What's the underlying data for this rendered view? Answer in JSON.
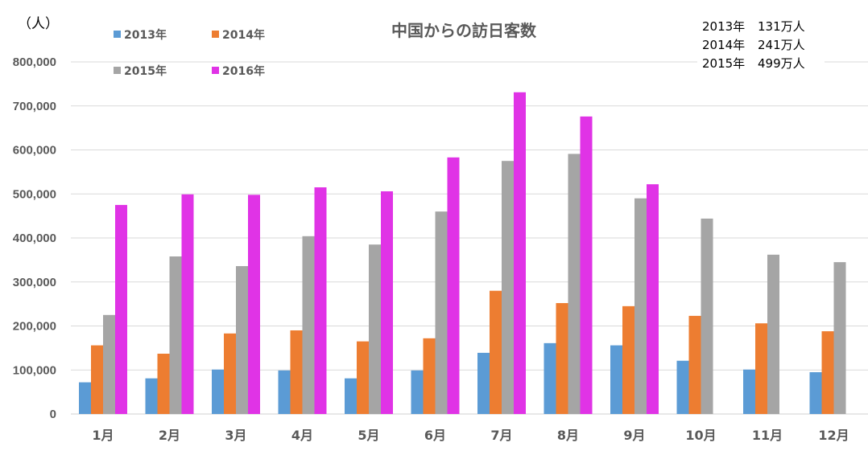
{
  "chart_data": {
    "type": "bar",
    "title": "中国からの訪日客数",
    "y_unit_label": "（人）",
    "ylim": [
      0,
      800000
    ],
    "y_ticks": [
      "0",
      "100,000",
      "200,000",
      "300,000",
      "400,000",
      "500,000",
      "600,000",
      "700,000",
      "800,000"
    ],
    "y_tick_values": [
      0,
      100000,
      200000,
      300000,
      400000,
      500000,
      600000,
      700000,
      800000
    ],
    "grid": true,
    "legend_position": "top-left",
    "categories": [
      "1月",
      "2月",
      "3月",
      "4月",
      "5月",
      "6月",
      "7月",
      "8月",
      "9月",
      "10月",
      "11月",
      "12月"
    ],
    "series": [
      {
        "name": "2013年",
        "color": "#5B9BD5",
        "values": [
          72000,
          81000,
          101000,
          99000,
          81000,
          99000,
          139000,
          161000,
          156000,
          121000,
          101000,
          95000
        ]
      },
      {
        "name": "2014年",
        "color": "#ED7D31",
        "values": [
          156000,
          137000,
          183000,
          190000,
          165000,
          172000,
          280000,
          252000,
          245000,
          223000,
          206000,
          188000
        ]
      },
      {
        "name": "2015年",
        "color": "#A5A5A5",
        "values": [
          225000,
          358000,
          336000,
          404000,
          385000,
          460000,
          575000,
          591000,
          490000,
          444000,
          362000,
          345000
        ]
      },
      {
        "name": "2016年",
        "color": "#E033E6",
        "values": [
          475000,
          499000,
          498000,
          515000,
          506000,
          583000,
          731000,
          676000,
          522000,
          null,
          null,
          null
        ]
      }
    ],
    "annotations": [
      {
        "year": "2013年",
        "value": "131万人"
      },
      {
        "year": "2014年",
        "value": "241万人"
      },
      {
        "year": "2015年",
        "value": "499万人"
      }
    ]
  }
}
